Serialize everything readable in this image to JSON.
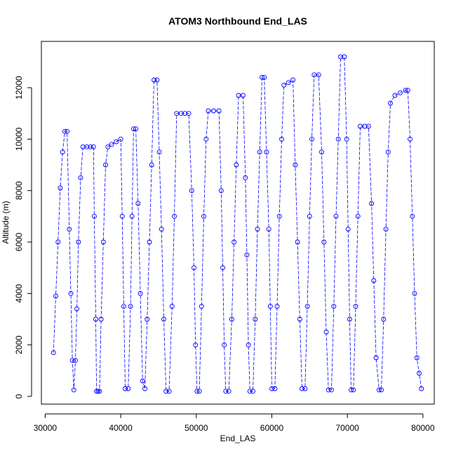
{
  "chart_data": {
    "type": "scatter",
    "title": "ATOM3 Northbound End_LAS",
    "xlabel": "End_LAS",
    "ylabel": "Altitude (m)",
    "xlim": [
      29500,
      81500
    ],
    "ylim": [
      -300,
      13800
    ],
    "x_ticks": [
      30000,
      40000,
      50000,
      60000,
      70000,
      80000
    ],
    "y_ticks": [
      0,
      2000,
      4000,
      6000,
      8000,
      10000,
      12000
    ],
    "x_tick_labels": [
      "30000",
      "40000",
      "50000",
      "60000",
      "70000",
      "80000"
    ],
    "y_tick_labels": [
      "0",
      "2000",
      "4000",
      "6000",
      "8000",
      "10000",
      "12000"
    ],
    "grid": false,
    "legend": "none",
    "marker": "open-circle",
    "line_style": "dashed-connect",
    "color": "#0000ff",
    "series": [
      {
        "values": [
          [
            31100,
            1700
          ],
          [
            31400,
            3900
          ],
          [
            31700,
            6000
          ],
          [
            32000,
            8100
          ],
          [
            32300,
            9500
          ],
          [
            32600,
            10300
          ],
          [
            32900,
            10300
          ],
          [
            33200,
            6500
          ],
          [
            33400,
            4000
          ],
          [
            33600,
            1400
          ],
          [
            33800,
            250
          ],
          [
            34000,
            1400
          ],
          [
            34200,
            3400
          ],
          [
            34400,
            6000
          ],
          [
            34700,
            8500
          ],
          [
            35000,
            9700
          ],
          [
            35500,
            9700
          ],
          [
            36000,
            9700
          ],
          [
            36400,
            9700
          ],
          [
            36500,
            7000
          ],
          [
            36700,
            3000
          ],
          [
            36800,
            200
          ],
          [
            37000,
            200
          ],
          [
            37200,
            200
          ],
          [
            37400,
            3000
          ],
          [
            37700,
            6000
          ],
          [
            38000,
            9000
          ],
          [
            38300,
            9700
          ],
          [
            38800,
            9800
          ],
          [
            39400,
            9900
          ],
          [
            40000,
            10000
          ],
          [
            40200,
            7000
          ],
          [
            40400,
            3500
          ],
          [
            40600,
            300
          ],
          [
            41000,
            300
          ],
          [
            41300,
            3500
          ],
          [
            41500,
            7000
          ],
          [
            41700,
            10400
          ],
          [
            42000,
            10400
          ],
          [
            42300,
            7500
          ],
          [
            42600,
            4000
          ],
          [
            42900,
            600
          ],
          [
            43200,
            300
          ],
          [
            43500,
            3000
          ],
          [
            43800,
            6000
          ],
          [
            44100,
            9000
          ],
          [
            44400,
            12300
          ],
          [
            44800,
            12300
          ],
          [
            45100,
            9500
          ],
          [
            45400,
            6500
          ],
          [
            45700,
            3000
          ],
          [
            46000,
            200
          ],
          [
            46400,
            200
          ],
          [
            46800,
            3500
          ],
          [
            47100,
            7000
          ],
          [
            47400,
            11000
          ],
          [
            48000,
            11000
          ],
          [
            48500,
            11000
          ],
          [
            49000,
            11000
          ],
          [
            49400,
            8000
          ],
          [
            49700,
            5000
          ],
          [
            49900,
            2000
          ],
          [
            50100,
            200
          ],
          [
            50400,
            200
          ],
          [
            50700,
            3500
          ],
          [
            51000,
            7000
          ],
          [
            51300,
            10000
          ],
          [
            51600,
            11100
          ],
          [
            52300,
            11100
          ],
          [
            53000,
            11100
          ],
          [
            53300,
            8000
          ],
          [
            53500,
            5000
          ],
          [
            53700,
            2000
          ],
          [
            53900,
            200
          ],
          [
            54300,
            200
          ],
          [
            54700,
            3000
          ],
          [
            55000,
            6000
          ],
          [
            55300,
            9000
          ],
          [
            55600,
            11700
          ],
          [
            56200,
            11700
          ],
          [
            56500,
            8500
          ],
          [
            56700,
            5500
          ],
          [
            56900,
            2000
          ],
          [
            57100,
            200
          ],
          [
            57500,
            200
          ],
          [
            57800,
            3000
          ],
          [
            58100,
            6500
          ],
          [
            58400,
            9500
          ],
          [
            58700,
            12400
          ],
          [
            59000,
            12400
          ],
          [
            59300,
            9500
          ],
          [
            59600,
            6500
          ],
          [
            59800,
            3500
          ],
          [
            60000,
            300
          ],
          [
            60400,
            300
          ],
          [
            60700,
            3500
          ],
          [
            61000,
            7000
          ],
          [
            61300,
            10000
          ],
          [
            61600,
            12100
          ],
          [
            62200,
            12200
          ],
          [
            62800,
            12300
          ],
          [
            63100,
            9000
          ],
          [
            63400,
            6000
          ],
          [
            63700,
            3000
          ],
          [
            64000,
            300
          ],
          [
            64400,
            300
          ],
          [
            64700,
            3500
          ],
          [
            65000,
            7000
          ],
          [
            65300,
            10000
          ],
          [
            65600,
            12500
          ],
          [
            66200,
            12500
          ],
          [
            66600,
            9500
          ],
          [
            66900,
            6000
          ],
          [
            67200,
            2500
          ],
          [
            67500,
            250
          ],
          [
            67900,
            250
          ],
          [
            68200,
            3500
          ],
          [
            68500,
            7000
          ],
          [
            68800,
            10000
          ],
          [
            69100,
            13200
          ],
          [
            69600,
            13200
          ],
          [
            69900,
            10000
          ],
          [
            70100,
            6500
          ],
          [
            70300,
            3000
          ],
          [
            70500,
            250
          ],
          [
            70800,
            250
          ],
          [
            71100,
            3500
          ],
          [
            71400,
            7000
          ],
          [
            71700,
            10500
          ],
          [
            72300,
            10500
          ],
          [
            72800,
            10500
          ],
          [
            73200,
            7500
          ],
          [
            73500,
            4500
          ],
          [
            73800,
            1500
          ],
          [
            74200,
            250
          ],
          [
            74500,
            250
          ],
          [
            74800,
            3000
          ],
          [
            75100,
            6500
          ],
          [
            75400,
            9500
          ],
          [
            75700,
            11400
          ],
          [
            76300,
            11700
          ],
          [
            77000,
            11800
          ],
          [
            77700,
            11900
          ],
          [
            78000,
            11900
          ],
          [
            78300,
            10000
          ],
          [
            78600,
            7000
          ],
          [
            78900,
            4000
          ],
          [
            79200,
            1500
          ],
          [
            79500,
            900
          ],
          [
            79800,
            300
          ]
        ]
      }
    ]
  }
}
